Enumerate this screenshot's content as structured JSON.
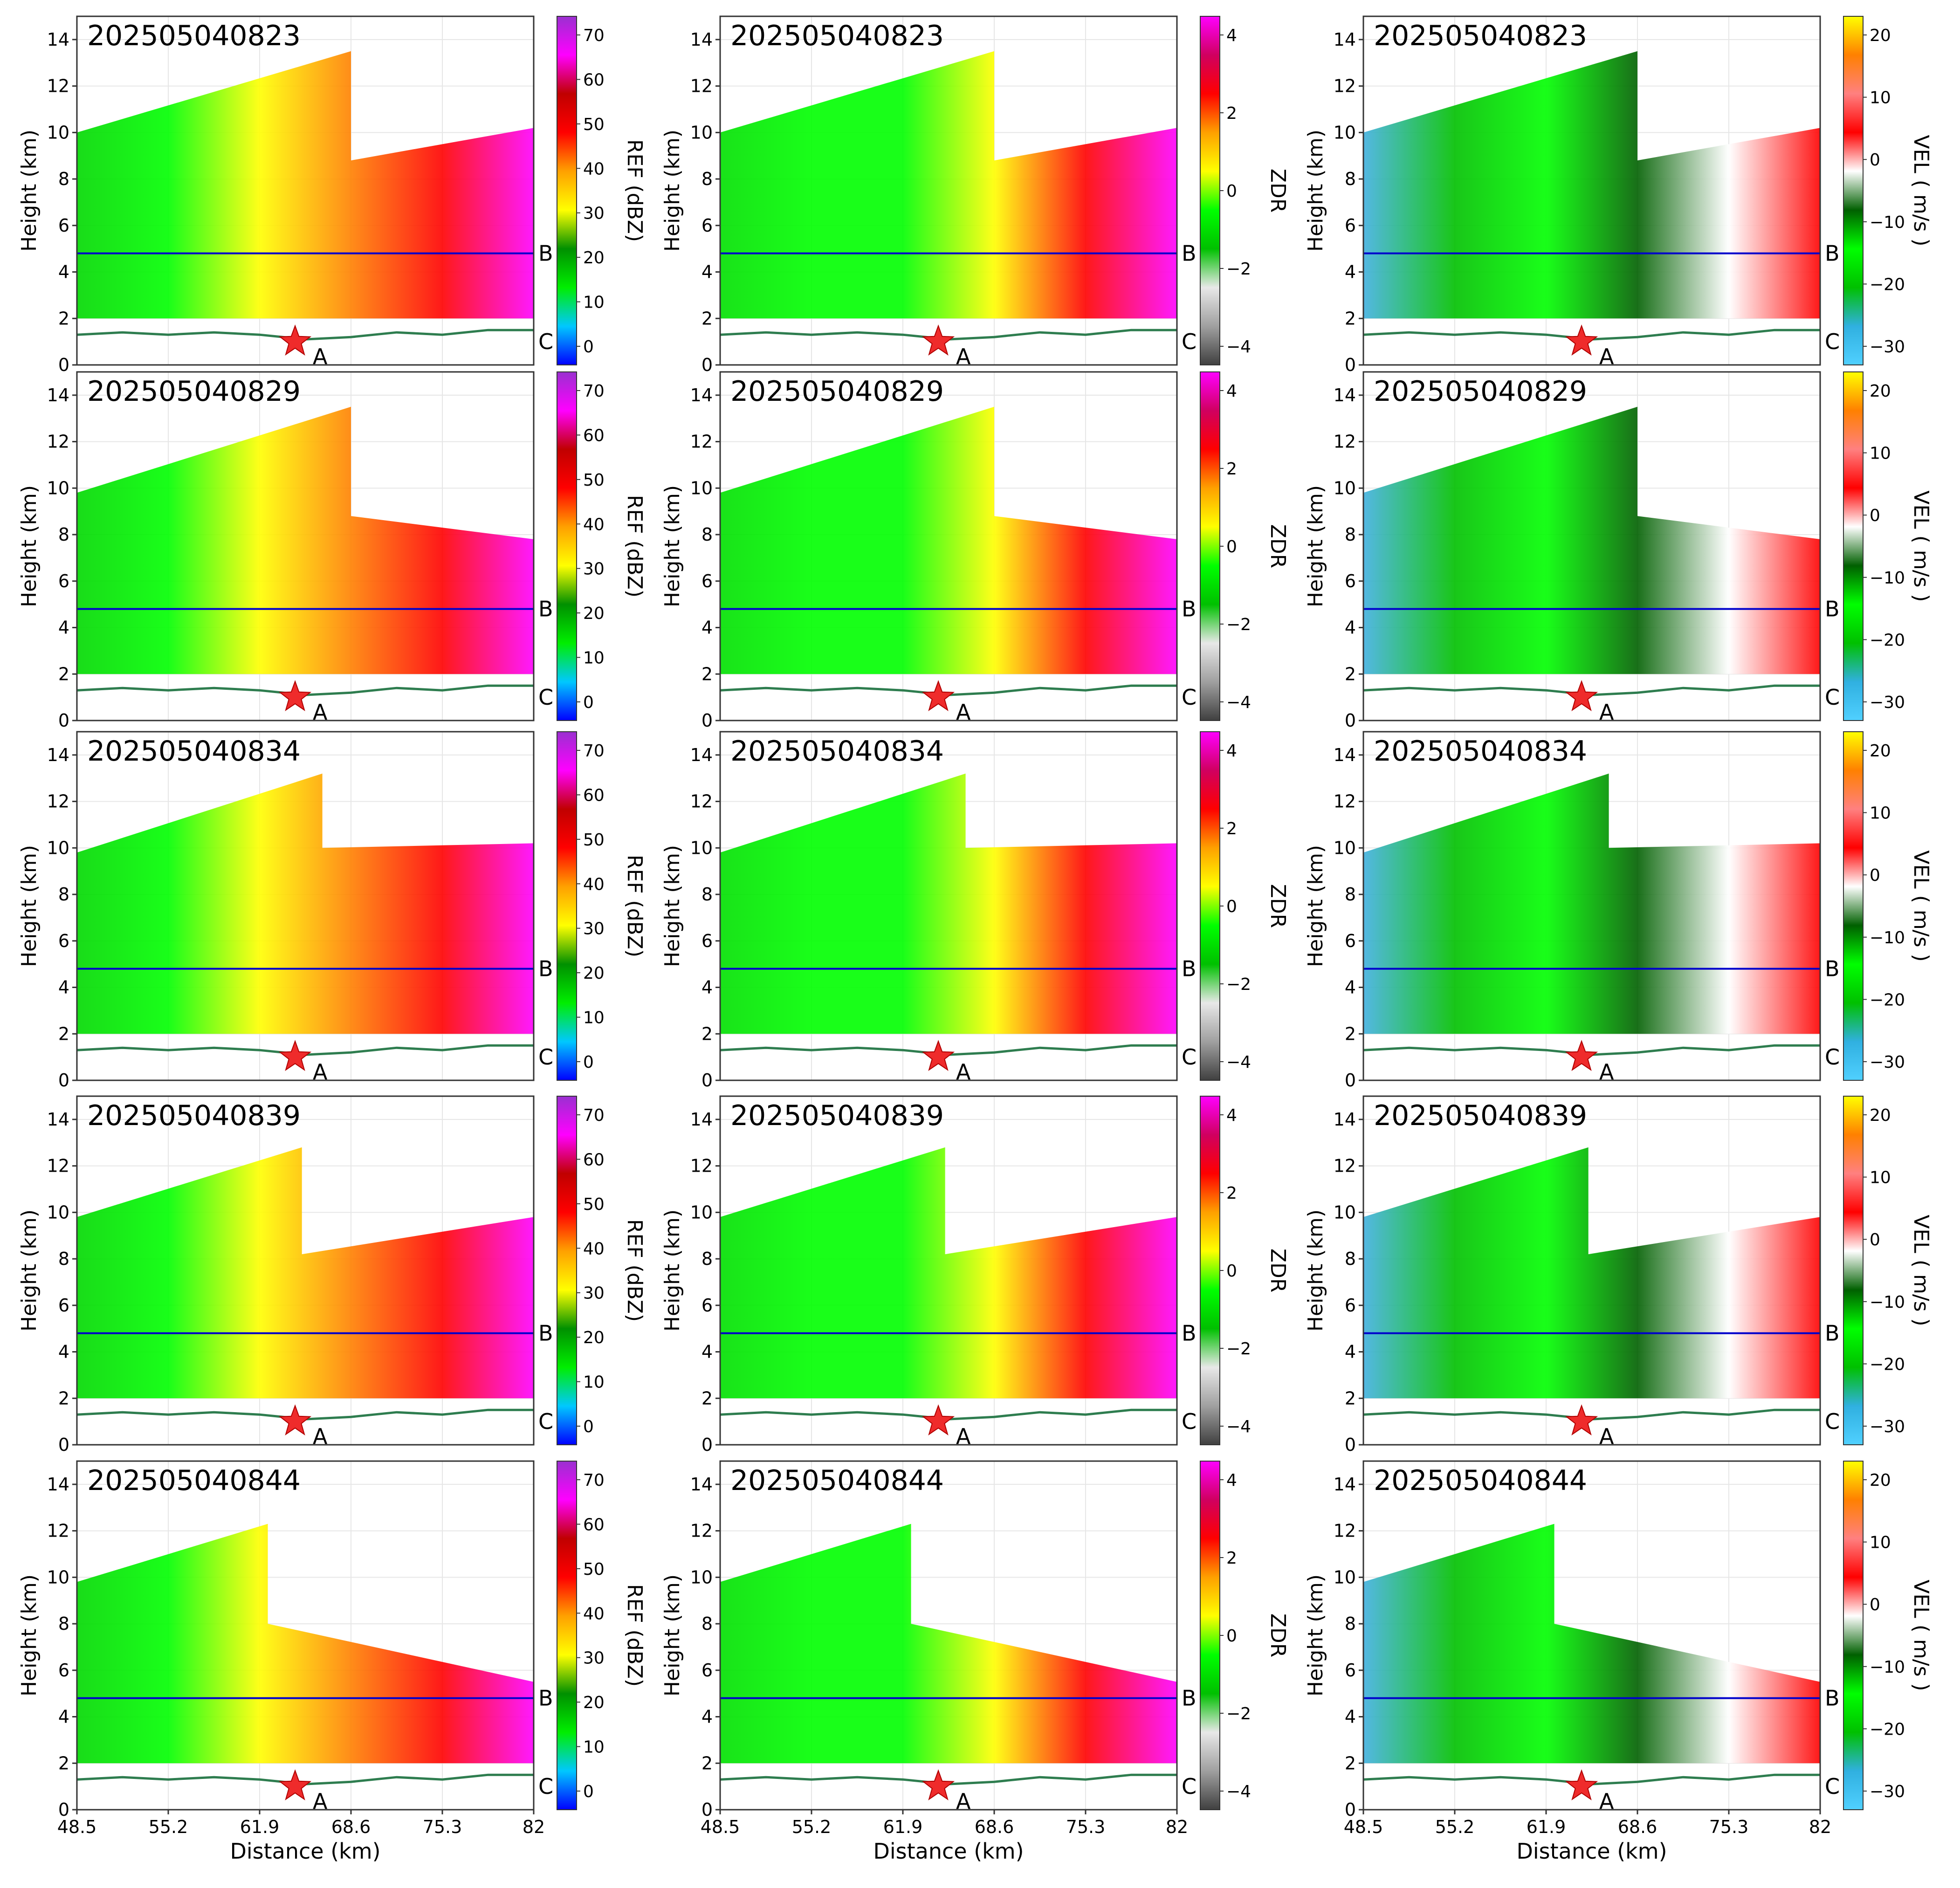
{
  "axes": {
    "y_label": "Height (km)",
    "x_label": "Distance (km)",
    "y_ticks": [
      "0",
      "2",
      "4",
      "6",
      "8",
      "10",
      "12",
      "14"
    ],
    "x_ticks": [
      "48.5",
      "55.2",
      "61.9",
      "68.6",
      "75.3",
      "82"
    ]
  },
  "markers": {
    "star_label": "A",
    "line_label": "B",
    "terrain_label": "C"
  },
  "timestamps": [
    "202505040823",
    "202505040829",
    "202505040834",
    "202505040839",
    "202505040844"
  ],
  "colorbars": [
    {
      "label": "REF (dBZ)",
      "ticks": [
        "0",
        "10",
        "20",
        "30",
        "40",
        "50",
        "60",
        "70"
      ],
      "stops": [
        "#0000ff",
        "#00c8ff",
        "#00ee00",
        "#009000",
        "#ffff00",
        "#ffa000",
        "#ff0000",
        "#c00000",
        "#ff00ff",
        "#9a30d0"
      ]
    },
    {
      "label": "ZDR",
      "ticks": [
        "−4",
        "−2",
        "0",
        "2",
        "4"
      ],
      "stops": [
        "#404040",
        "#a0a0a0",
        "#e8e8e8",
        "#00c000",
        "#00ff00",
        "#ffff00",
        "#ffa000",
        "#ff0000",
        "#d00060",
        "#ff00ff"
      ]
    },
    {
      "label": "VEL ( m/s )",
      "ticks": [
        "−30",
        "−20",
        "−10",
        "0",
        "10",
        "20"
      ],
      "stops": [
        "#50d0ff",
        "#30b0e0",
        "#00c000",
        "#00ff00",
        "#006000",
        "#ffffff",
        "#ff0000",
        "#ff8080",
        "#ff8000",
        "#ffff00"
      ]
    }
  ],
  "chart_data": {
    "type": "heatmap",
    "x_range_km": [
      48.5,
      82
    ],
    "y_range_km": [
      0,
      15
    ],
    "blue_line_height_km": 4.8,
    "terrain_height_km": [
      1.3,
      1.4,
      1.3,
      1.4,
      1.3,
      1.1,
      1.2,
      1.4,
      1.3,
      1.5,
      1.5
    ],
    "star_position": {
      "distance_km": 64.5,
      "height_km": 1.0
    },
    "echo_tops_km": {
      "202505040823": [
        [
          48.5,
          10.0
        ],
        [
          68.6,
          13.5
        ],
        [
          68.6,
          8.8
        ],
        [
          82,
          10.2
        ]
      ],
      "202505040829": [
        [
          48.5,
          9.8
        ],
        [
          68.6,
          13.5
        ],
        [
          68.6,
          8.8
        ],
        [
          82,
          7.8
        ]
      ],
      "202505040834": [
        [
          48.5,
          9.8
        ],
        [
          66.5,
          13.2
        ],
        [
          66.5,
          10.0
        ],
        [
          82,
          10.2
        ]
      ],
      "202505040839": [
        [
          48.5,
          9.8
        ],
        [
          65.0,
          12.8
        ],
        [
          65.0,
          8.2
        ],
        [
          82,
          9.8
        ]
      ],
      "202505040844": [
        [
          48.5,
          9.8
        ],
        [
          62.5,
          12.3
        ],
        [
          62.5,
          8.0
        ],
        [
          82,
          5.5
        ]
      ]
    }
  }
}
